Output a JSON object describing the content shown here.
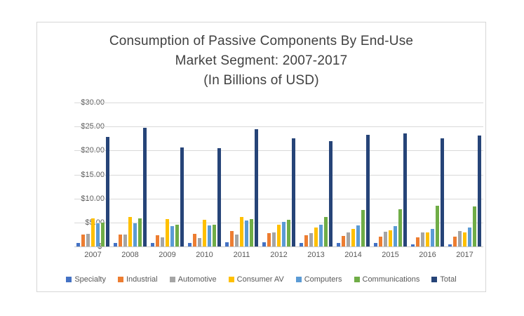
{
  "title": {
    "line1": "Consumption of Passive Components By End-Use",
    "line2": "Market Segment: 2007-2017",
    "line3": "(In Billions of USD)"
  },
  "chart_data": {
    "type": "bar",
    "title": "Consumption of Passive Components By End-Use Market Segment: 2007-2017 (In Billions of USD)",
    "categories": [
      "2007",
      "2008",
      "2009",
      "2010",
      "2011",
      "2012",
      "2013",
      "2014",
      "2015",
      "2016",
      "2017"
    ],
    "series": [
      {
        "name": "Specialty",
        "color": "#4472c4",
        "values": [
          0.8,
          0.7,
          0.7,
          0.8,
          0.9,
          0.9,
          0.8,
          0.7,
          0.7,
          0.5,
          0.5
        ]
      },
      {
        "name": "Industrial",
        "color": "#ed7d31",
        "values": [
          2.5,
          2.5,
          2.4,
          2.6,
          3.2,
          2.8,
          2.4,
          2.2,
          2.1,
          1.9,
          2.0
        ]
      },
      {
        "name": "Automotive",
        "color": "#a5a5a5",
        "values": [
          2.7,
          2.5,
          1.9,
          1.7,
          2.5,
          2.9,
          2.8,
          3.0,
          3.1,
          2.9,
          3.2
        ]
      },
      {
        "name": "Consumer AV",
        "color": "#ffc000",
        "values": [
          5.8,
          6.1,
          5.7,
          5.6,
          6.1,
          4.6,
          3.9,
          3.6,
          3.4,
          2.9,
          2.9
        ]
      },
      {
        "name": "Computers",
        "color": "#5b9bd5",
        "values": [
          4.8,
          4.9,
          4.3,
          4.4,
          5.4,
          5.1,
          4.5,
          4.4,
          4.3,
          3.7,
          4.0
        ]
      },
      {
        "name": "Communications",
        "color": "#70ad47",
        "values": [
          5.0,
          5.9,
          4.6,
          4.6,
          5.7,
          5.5,
          6.1,
          7.6,
          7.8,
          8.5,
          8.4
        ]
      },
      {
        "name": "Total",
        "color": "#264478",
        "values": [
          22.9,
          24.8,
          20.7,
          20.5,
          24.4,
          22.5,
          21.9,
          23.2,
          23.5,
          22.6,
          23.1
        ]
      }
    ],
    "ylabel": "",
    "xlabel": "",
    "ylim": [
      0,
      30
    ],
    "y_ticks": [
      "$30.00",
      "$25.00",
      "$20.00",
      "$15.00",
      "$10.00",
      "$5.00",
      "$-"
    ],
    "grid": "horizontal",
    "legend_position": "bottom"
  }
}
